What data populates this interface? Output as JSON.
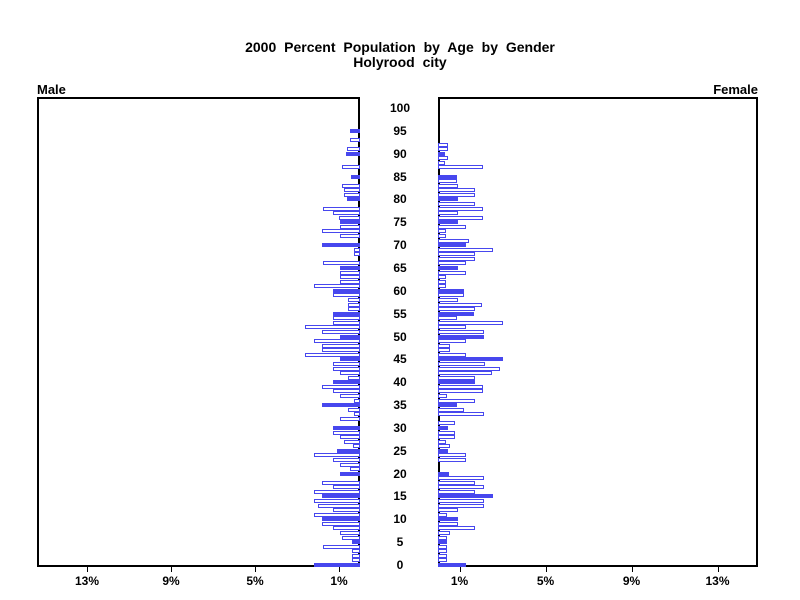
{
  "title": {
    "line1": "2000 Percent Population by Age by Gender",
    "line2": "Holyrood city"
  },
  "panels": {
    "male": {
      "label": "Male"
    },
    "female": {
      "label": "Female"
    }
  },
  "age_axis": {
    "tick_ages": [
      0,
      5,
      10,
      15,
      20,
      25,
      30,
      35,
      40,
      45,
      50,
      55,
      60,
      65,
      70,
      75,
      80,
      85,
      90,
      95,
      100
    ]
  },
  "pct_axis": {
    "male_ticks": [
      {
        "label": "13%",
        "value": 13
      },
      {
        "label": "9%",
        "value": 9
      },
      {
        "label": "5%",
        "value": 5
      },
      {
        "label": "1%",
        "value": 1
      }
    ],
    "female_ticks": [
      {
        "label": "1%",
        "value": 1
      },
      {
        "label": "5%",
        "value": 5
      },
      {
        "label": "9%",
        "value": 9
      },
      {
        "label": "13%",
        "value": 13
      }
    ]
  },
  "colors": {
    "bar_blue": "#4747ee",
    "bar_outline_fill": "#ffffff",
    "frame": "#000000",
    "text": "#000000",
    "background": "#ffffff"
  },
  "chart_data": {
    "type": "bar",
    "variant": "population_pyramid",
    "title": "2000 Percent Population by Age by Gender",
    "subtitle": "Holyrood city",
    "unit": "percent of population",
    "age_range": {
      "min": 0,
      "max": 100,
      "step": 1
    },
    "xlim_each_side": [
      0,
      15
    ],
    "style_note": "one horizontal bar per single year of age; ages divisible by 5 are drawn solid blue, all other ages are white bars with blue outline; male bars grow leftward, female bars grow rightward",
    "series": [
      {
        "name": "Male",
        "values": [
          2.2,
          0.4,
          0.4,
          0.4,
          1.75,
          0.4,
          0.85,
          0.95,
          1.3,
          1.8,
          1.8,
          2.2,
          1.3,
          2.0,
          2.2,
          1.8,
          2.2,
          1.3,
          1.8,
          0,
          0.95,
          0.5,
          0.95,
          1.3,
          2.2,
          1.1,
          0.35,
          0.75,
          0.95,
          1.3,
          1.3,
          0,
          0.95,
          0.3,
          0.55,
          1.8,
          0.3,
          0.95,
          1.3,
          1.8,
          1.3,
          0.55,
          0.95,
          1.3,
          1.3,
          0.95,
          2.6,
          1.8,
          1.8,
          2.2,
          0.95,
          1.8,
          2.6,
          1.3,
          1.3,
          1.3,
          0.55,
          0.55,
          0.55,
          1.3,
          1.3,
          2.2,
          0.95,
          0.95,
          0.95,
          0.95,
          1.75,
          0,
          0.3,
          0.3,
          1.8,
          0,
          0.95,
          1.8,
          0.95,
          0.95,
          1.0,
          1.3,
          1.75,
          0,
          0.6,
          0.75,
          0.75,
          0.85,
          0,
          0.45,
          0,
          0.85,
          0,
          0,
          0.65,
          0.6,
          0,
          0.5,
          0,
          0.5,
          0,
          0,
          0,
          0,
          0
        ]
      },
      {
        "name": "Female",
        "values": [
          1.3,
          0.4,
          0.4,
          0.4,
          0.4,
          0.4,
          0.4,
          0.55,
          1.7,
          0.95,
          0.95,
          0.4,
          0.95,
          2.15,
          2.15,
          2.55,
          1.7,
          2.15,
          1.7,
          2.15,
          0.5,
          0,
          0,
          1.3,
          1.3,
          0.45,
          0.55,
          0.35,
          0.8,
          0.8,
          0.45,
          0.8,
          0,
          2.15,
          1.2,
          0.9,
          1.7,
          0.4,
          2.1,
          2.1,
          1.7,
          1.7,
          2.5,
          2.9,
          2.2,
          3.0,
          1.3,
          0.55,
          0.55,
          1.3,
          2.15,
          2.15,
          1.3,
          3.0,
          0.9,
          1.65,
          1.7,
          2.05,
          0.95,
          1.2,
          1.2,
          0.35,
          0.35,
          0.35,
          1.3,
          0.95,
          1.3,
          1.7,
          1.7,
          2.55,
          1.3,
          1.45,
          0.35,
          0.35,
          1.3,
          0.95,
          2.1,
          0.95,
          2.1,
          1.7,
          0.95,
          1.7,
          1.7,
          0.95,
          0.9,
          0.9,
          0,
          2.1,
          0.3,
          0.45,
          0.3,
          0.45,
          0.45,
          0,
          0,
          0,
          0,
          0,
          0,
          0,
          0
        ]
      }
    ],
    "legend": "none",
    "grid": "off"
  }
}
